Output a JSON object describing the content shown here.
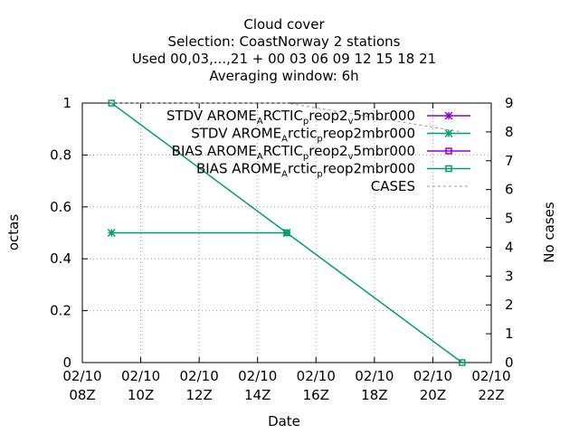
{
  "chart_data": {
    "type": "line",
    "title_lines": [
      "Cloud cover",
      "Selection: CoastNorway      2 stations",
      "Used  00,03,...,21  + 00 03 06 09 12 15 18 21",
      "Averaging window:  6h"
    ],
    "xlabel": "Date",
    "ylabel": "octas",
    "y2label": "No cases",
    "ylim": [
      0,
      1
    ],
    "y2lim": [
      0,
      9
    ],
    "xlim_hours": [
      8,
      22
    ],
    "x_ticks": [
      {
        "hour": 8,
        "date": "02/10",
        "time": "08Z"
      },
      {
        "hour": 10,
        "date": "02/10",
        "time": "10Z"
      },
      {
        "hour": 12,
        "date": "02/10",
        "time": "12Z"
      },
      {
        "hour": 14,
        "date": "02/10",
        "time": "14Z"
      },
      {
        "hour": 16,
        "date": "02/10",
        "time": "16Z"
      },
      {
        "hour": 18,
        "date": "02/10",
        "time": "18Z"
      },
      {
        "hour": 20,
        "date": "02/10",
        "time": "20Z"
      },
      {
        "hour": 22,
        "date": "02/10",
        "time": "22Z"
      }
    ],
    "y_ticks": [
      "0",
      "0.2",
      "0.4",
      "0.6",
      "0.8",
      "1"
    ],
    "y2_ticks": [
      "0",
      "1",
      "2",
      "3",
      "4",
      "5",
      "6",
      "7",
      "8",
      "9"
    ],
    "grid": true,
    "legend_position": "top-right",
    "series": [
      {
        "name_parts": [
          [
            "STDV AROME",
            ""
          ],
          [
            "A",
            "sub"
          ],
          [
            "RCTIC",
            ""
          ],
          [
            "p",
            "sub"
          ],
          [
            "reop2",
            ""
          ],
          [
            "v",
            "sub"
          ],
          [
            "5mbr000",
            ""
          ]
        ],
        "color": "#9400d3",
        "marker": "star",
        "axis": "y",
        "points": []
      },
      {
        "name_parts": [
          [
            "STDV AROME",
            ""
          ],
          [
            "A",
            "sub"
          ],
          [
            "rctic",
            ""
          ],
          [
            "p",
            "sub"
          ],
          [
            "reop2mbr000",
            ""
          ]
        ],
        "color": "#009e73",
        "marker": "star",
        "axis": "y",
        "points": [
          {
            "x": 9,
            "y": 0.5
          },
          {
            "x": 15,
            "y": 0.5
          }
        ]
      },
      {
        "name_parts": [
          [
            "BIAS AROME",
            ""
          ],
          [
            "A",
            "sub"
          ],
          [
            "RCTIC",
            ""
          ],
          [
            "p",
            "sub"
          ],
          [
            "reop2",
            ""
          ],
          [
            "v",
            "sub"
          ],
          [
            "5mbr000",
            ""
          ]
        ],
        "color": "#9400d3",
        "marker": "square",
        "axis": "y",
        "points": []
      },
      {
        "name_parts": [
          [
            "BIAS AROME",
            ""
          ],
          [
            "A",
            "sub"
          ],
          [
            "rctic",
            ""
          ],
          [
            "p",
            "sub"
          ],
          [
            "reop2mbr000",
            ""
          ]
        ],
        "color": "#009e73",
        "marker": "square",
        "axis": "y",
        "points": [
          {
            "x": 9,
            "y": 1.0
          },
          {
            "x": 15,
            "y": 0.5
          },
          {
            "x": 21,
            "y": 0.0
          }
        ]
      },
      {
        "name_parts": [
          [
            "CASES",
            ""
          ]
        ],
        "color": "#999999",
        "marker": "none",
        "dashed": true,
        "axis": "y2",
        "points": [
          {
            "x": 9,
            "y": 9
          },
          {
            "x": 15,
            "y": 9
          },
          {
            "x": 21,
            "y": 8
          }
        ]
      }
    ]
  }
}
